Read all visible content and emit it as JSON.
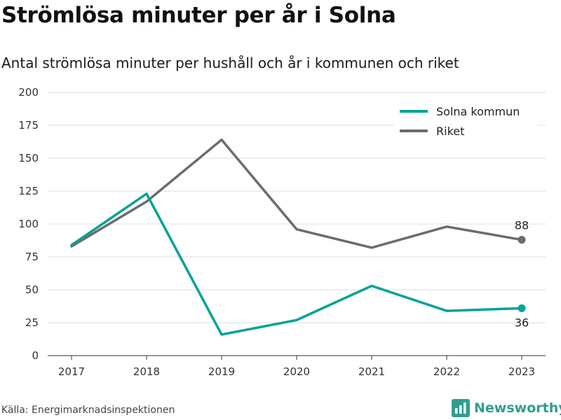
{
  "title": "Strömlösa minuter per år i Solna",
  "subtitle": "Antal strömlösa minuter per hushåll och år i kommunen och riket",
  "source": "Källa: Energimarknadsinspektionen",
  "brand": {
    "name": "Newsworthy",
    "icon": "bar-chart-logo-icon",
    "color": "#2f9e90"
  },
  "chart_data": {
    "type": "line",
    "x": [
      "2017",
      "2018",
      "2019",
      "2020",
      "2021",
      "2022",
      "2023"
    ],
    "series": [
      {
        "name": "Solna kommun",
        "color": "#00a396",
        "values": [
          84,
          123,
          16,
          27,
          53,
          34,
          36
        ],
        "end_label": "36",
        "end_label_position": "below"
      },
      {
        "name": "Riket",
        "color": "#6b6b73",
        "values": [
          83,
          117,
          164,
          96,
          82,
          98,
          88
        ],
        "end_label": "88",
        "end_label_position": "above"
      }
    ],
    "ylim": [
      0,
      200
    ],
    "yticks": [
      "0",
      "25",
      "50",
      "75",
      "100",
      "125",
      "150",
      "175",
      "200"
    ],
    "xlabel": "",
    "ylabel": "",
    "grid": true,
    "legend_position": "top-right"
  }
}
